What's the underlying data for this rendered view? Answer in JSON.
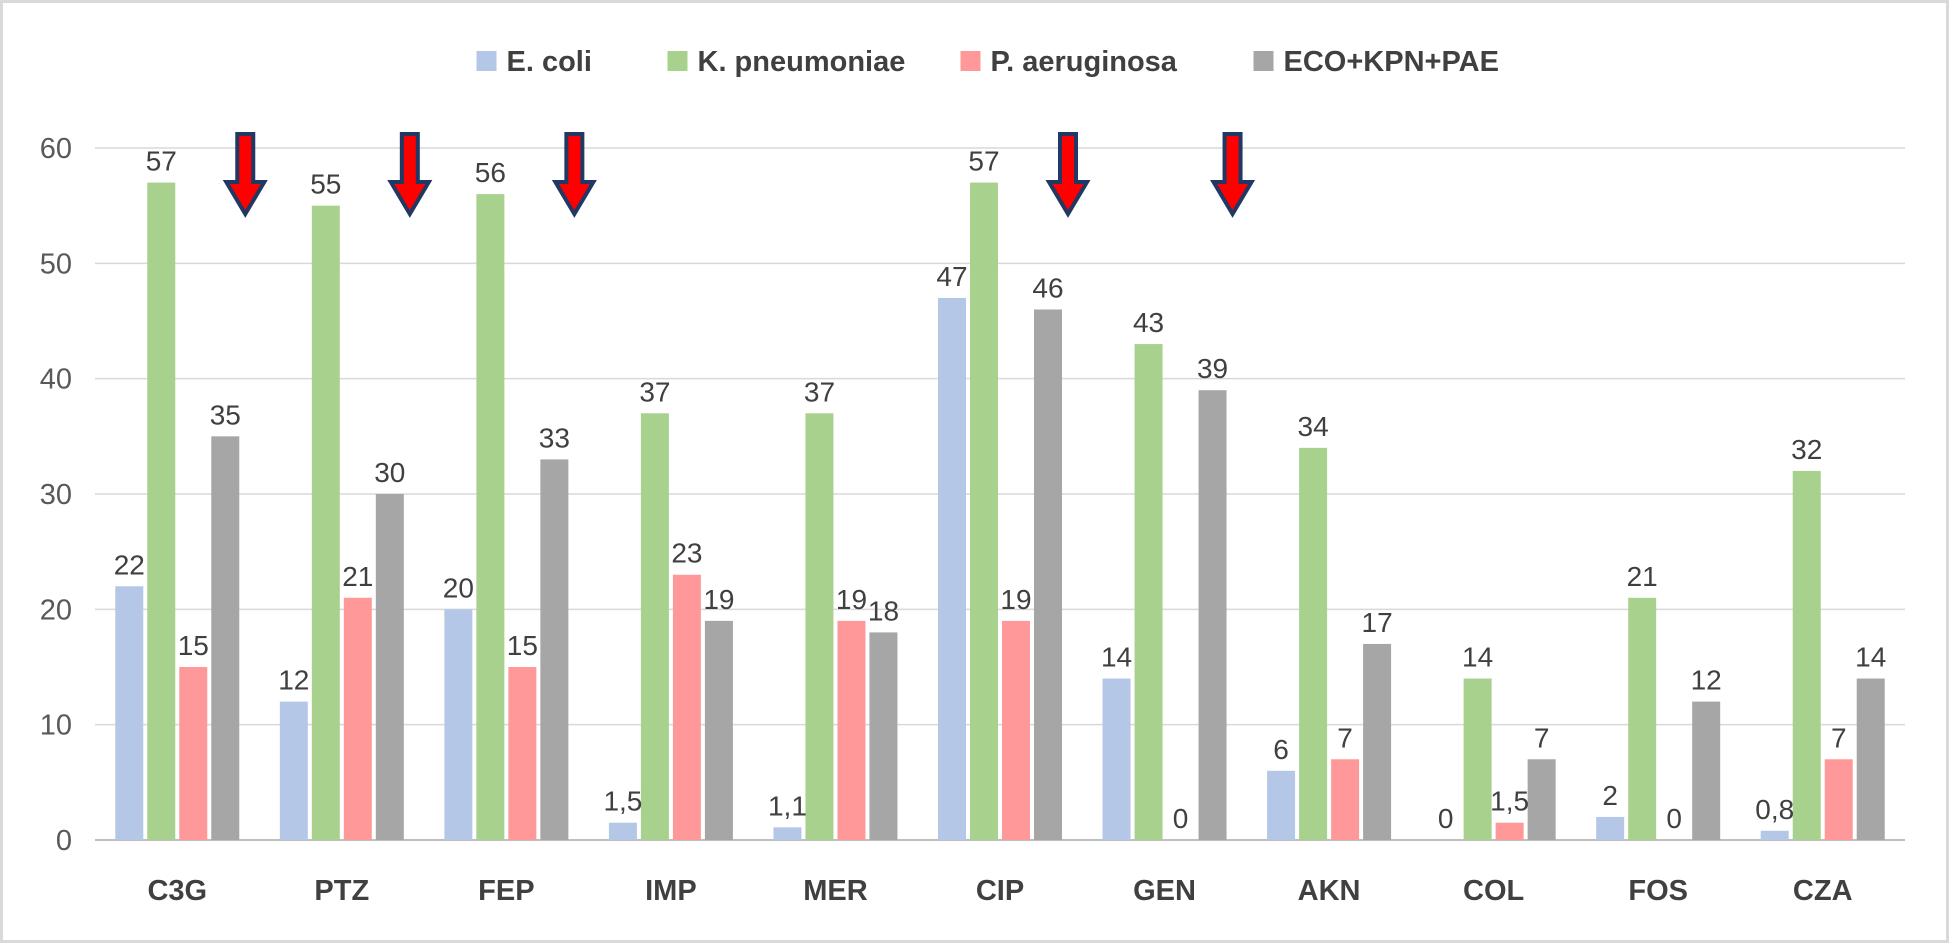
{
  "chart_data": {
    "type": "bar",
    "title": "",
    "xlabel": "",
    "ylabel": "",
    "ylim": [
      0,
      60
    ],
    "yticks": [
      0,
      10,
      20,
      30,
      40,
      50,
      60
    ],
    "grid": true,
    "legend_position": "top",
    "categories": [
      "C3G",
      "PTZ",
      "FEP",
      "IMP",
      "MER",
      "CIP",
      "GEN",
      "AKN",
      "COL",
      "FOS",
      "CZA"
    ],
    "series": [
      {
        "name": "E. coli",
        "color": "#b4c7e7",
        "values": [
          22,
          12,
          20,
          1.5,
          1.1,
          47,
          14,
          6,
          0,
          2,
          0.8
        ],
        "labels": [
          "22",
          "12",
          "20",
          "1,5",
          "1,1",
          "47",
          "14",
          "6",
          "0",
          "2",
          "0,8"
        ]
      },
      {
        "name": "K. pneumoniae",
        "color": "#a9d18e",
        "values": [
          57,
          55,
          56,
          37,
          37,
          57,
          43,
          34,
          14,
          21,
          32
        ],
        "labels": [
          "57",
          "55",
          "56",
          "37",
          "37",
          "57",
          "43",
          "34",
          "14",
          "21",
          "32"
        ]
      },
      {
        "name": "P. aeruginosa",
        "color": "#ff9999",
        "values": [
          15,
          21,
          15,
          23,
          19,
          19,
          0,
          7,
          1.5,
          0,
          7
        ],
        "labels": [
          "15",
          "21",
          "15",
          "23",
          "19",
          "19",
          "0",
          "7",
          "1,5",
          "0",
          "7"
        ]
      },
      {
        "name": "ECO+KPN+PAE",
        "color": "#a6a6a6",
        "values": [
          35,
          30,
          33,
          19,
          18,
          46,
          39,
          17,
          7,
          12,
          14
        ],
        "labels": [
          "35",
          "30",
          "33",
          "19",
          "18",
          "46",
          "39",
          "17",
          "7",
          "12",
          "14"
        ]
      }
    ],
    "annotations": {
      "arrow_categories": [
        "C3G",
        "PTZ",
        "FEP",
        "CIP",
        "GEN"
      ],
      "arrow_color": "#ff0000",
      "arrow_outline": "#203864"
    }
  }
}
